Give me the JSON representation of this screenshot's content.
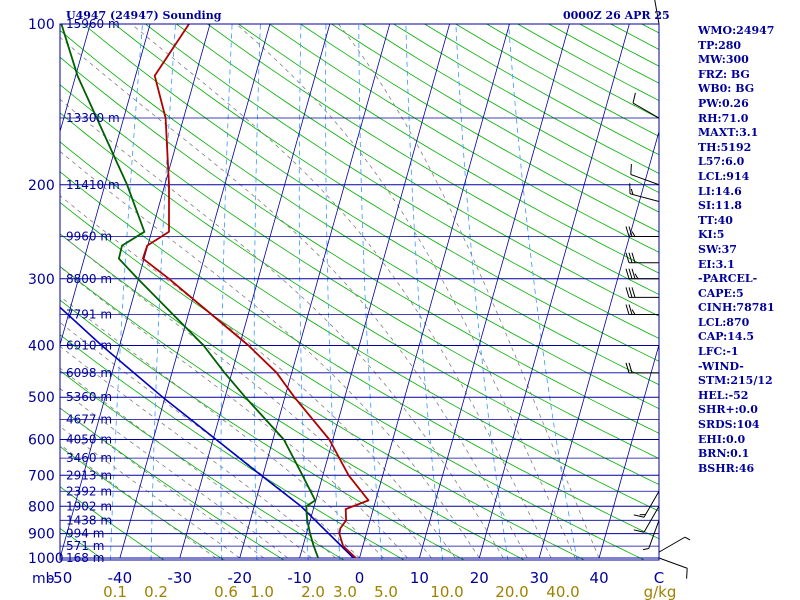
{
  "header": {
    "station": "U4947 (24947) Sounding",
    "time": "0000Z 26 APR 25"
  },
  "indices": [
    "WMO:24947",
    "TP:280",
    "MW:300",
    "FRZ: BG",
    "WB0: BG",
    "PW:0.26",
    "RH:71.0",
    "MAXT:3.1",
    "TH:5192",
    "L57:6.0",
    "LCL:914",
    "LI:14.6",
    "SI:11.8",
    "TT:40",
    "KI:5",
    "SW:37",
    "EI:3.1",
    "-PARCEL-",
    "CAPE:5",
    "CINH:78781",
    "LCL:870",
    "CAP:14.5",
    "LFC:-1",
    "-WIND-",
    "STM:215/12",
    "HEL:-52",
    "SHR+:0.0",
    "SRDS:104",
    "EHI:0.0",
    "BRN:0.1",
    "BSHR:46"
  ],
  "colors": {
    "frame": "#00009a",
    "isobar": "#0000a0",
    "isotherm": "#0000a0",
    "dry_adiabat": "#00b000",
    "moist_adiabat": "#808080",
    "mixing_ratio": "#3399ff",
    "temperature": "#b00000",
    "dewpoint": "#006000",
    "parcel": "#0000c0",
    "wind": "#000000"
  },
  "chart_data": {
    "type": "skew-t",
    "title": "U4947 (24947) Sounding",
    "pressure_unit": "mb",
    "pressure_range": [
      1000,
      100
    ],
    "temperature_range": [
      -50,
      50
    ],
    "pressure_ticks": [
      1000,
      900,
      800,
      700,
      600,
      500,
      400,
      300,
      200,
      100
    ],
    "temperature_ticks": [
      -50,
      -40,
      -30,
      -20,
      -10,
      0,
      10,
      20,
      30,
      40,
      50
    ],
    "temperature_tick_labels": [
      "-50",
      "-40",
      "-30",
      "-20",
      "-10",
      "0",
      "10",
      "20",
      "30",
      "40",
      "C"
    ],
    "mixing_ratio_unit": "g/kg",
    "mixing_ratio_labels": [
      "0.1",
      "0.2",
      "0.6",
      "1.0",
      "2.0",
      "3.0",
      "5.0",
      "10.0",
      "20.0",
      "40.0"
    ],
    "height_labels": [
      {
        "p": 100,
        "label": "15960 m"
      },
      {
        "p": 150,
        "label": "13300 m"
      },
      {
        "p": 200,
        "label": "11410 m"
      },
      {
        "p": 250,
        "label": "9960 m"
      },
      {
        "p": 300,
        "label": "8800 m"
      },
      {
        "p": 350,
        "label": "7791 m"
      },
      {
        "p": 400,
        "label": "6910 m"
      },
      {
        "p": 450,
        "label": "6098 m"
      },
      {
        "p": 500,
        "label": "5360 m"
      },
      {
        "p": 550,
        "label": "4677 m"
      },
      {
        "p": 600,
        "label": "4050 m"
      },
      {
        "p": 650,
        "label": "3460 m"
      },
      {
        "p": 700,
        "label": "2913 m"
      },
      {
        "p": 750,
        "label": "2392 m"
      },
      {
        "p": 800,
        "label": "1902 m"
      },
      {
        "p": 850,
        "label": "1438 m"
      },
      {
        "p": 900,
        "label": "994 m"
      },
      {
        "p": 950,
        "label": "571 m"
      },
      {
        "p": 1000,
        "label": "168 m"
      }
    ],
    "temperature_profile": [
      {
        "p": 1000,
        "t": -0.6
      },
      {
        "p": 950,
        "t": -3.3
      },
      {
        "p": 900,
        "t": -4.5
      },
      {
        "p": 880,
        "t": -4.6
      },
      {
        "p": 850,
        "t": -4.0
      },
      {
        "p": 810,
        "t": -4.6
      },
      {
        "p": 780,
        "t": -1.2
      },
      {
        "p": 700,
        "t": -5.7
      },
      {
        "p": 600,
        "t": -10.6
      },
      {
        "p": 500,
        "t": -18.4
      },
      {
        "p": 450,
        "t": -22.5
      },
      {
        "p": 400,
        "t": -28.5
      },
      {
        "p": 300,
        "t": -44.9
      },
      {
        "p": 275,
        "t": -50.2
      },
      {
        "p": 260,
        "t": -50.1
      },
      {
        "p": 245,
        "t": -47.1
      },
      {
        "p": 200,
        "t": -49.3
      },
      {
        "p": 150,
        "t": -53.0
      },
      {
        "p": 125,
        "t": -56.8
      },
      {
        "p": 100,
        "t": -53.5
      }
    ],
    "dewpoint_profile": [
      {
        "p": 1000,
        "t": -6.9
      },
      {
        "p": 950,
        "t": -8.2
      },
      {
        "p": 900,
        "t": -9.4
      },
      {
        "p": 850,
        "t": -10.5
      },
      {
        "p": 800,
        "t": -11.3
      },
      {
        "p": 780,
        "t": -10.1
      },
      {
        "p": 700,
        "t": -13.4
      },
      {
        "p": 600,
        "t": -18.2
      },
      {
        "p": 500,
        "t": -26.6
      },
      {
        "p": 450,
        "t": -31.2
      },
      {
        "p": 400,
        "t": -36.0
      },
      {
        "p": 300,
        "t": -50.1
      },
      {
        "p": 275,
        "t": -54.2
      },
      {
        "p": 260,
        "t": -54.3
      },
      {
        "p": 245,
        "t": -51.2
      },
      {
        "p": 200,
        "t": -56.3
      },
      {
        "p": 150,
        "t": -64.5
      },
      {
        "p": 125,
        "t": -69.7
      },
      {
        "p": 100,
        "t": -74.8
      }
    ],
    "parcel_profile": [
      {
        "p": 1000,
        "t": -1.0
      },
      {
        "p": 800,
        "t": -12.2
      },
      {
        "p": 700,
        "t": -20.3
      },
      {
        "p": 600,
        "t": -29.5
      },
      {
        "p": 500,
        "t": -40.4
      },
      {
        "p": 400,
        "t": -53.0
      },
      {
        "p": 300,
        "t": -68.3
      },
      {
        "p": 200,
        "t": -88.7
      },
      {
        "p": 150,
        "t": -101.0
      },
      {
        "p": 100,
        "t": -117.0
      }
    ],
    "wind_barbs": [
      {
        "p": 1000,
        "dir": 110,
        "spd": 10
      },
      {
        "p": 975,
        "dir": 60,
        "spd": 5
      },
      {
        "p": 850,
        "dir": 200,
        "spd": 5
      },
      {
        "p": 800,
        "dir": 210,
        "spd": 10
      },
      {
        "p": 750,
        "dir": 210,
        "spd": 15
      },
      {
        "p": 450,
        "dir": 270,
        "spd": 20
      },
      {
        "p": 350,
        "dir": 270,
        "spd": 25
      },
      {
        "p": 325,
        "dir": 270,
        "spd": 30
      },
      {
        "p": 300,
        "dir": 270,
        "spd": 35
      },
      {
        "p": 280,
        "dir": 270,
        "spd": 30
      },
      {
        "p": 250,
        "dir": 270,
        "spd": 25
      },
      {
        "p": 215,
        "dir": 285,
        "spd": 15
      },
      {
        "p": 200,
        "dir": 290,
        "spd": 10
      },
      {
        "p": 150,
        "dir": 300,
        "spd": 10
      },
      {
        "p": 100,
        "dir": 350,
        "spd": 5
      }
    ],
    "dry_adiabats_theta_k": [
      210,
      220,
      230,
      240,
      250,
      260,
      270,
      280,
      290,
      300,
      310,
      320,
      330,
      340,
      350,
      360,
      370,
      380,
      390,
      400,
      410,
      420,
      430,
      440,
      450,
      460,
      470,
      480,
      490,
      500,
      510,
      520,
      530,
      540,
      550,
      560,
      570,
      580,
      590,
      600
    ],
    "moist_adiabats_tw_c": [
      -24,
      -20,
      -16,
      -12,
      -8,
      -4,
      0,
      4,
      8,
      12,
      16,
      20,
      24,
      28,
      32,
      36,
      40
    ],
    "mixing_ratio_lines_gkg": [
      0.1,
      0.2,
      0.6,
      1.0,
      2.0,
      3.0,
      5.0,
      10.0,
      20.0,
      40.0
    ]
  }
}
